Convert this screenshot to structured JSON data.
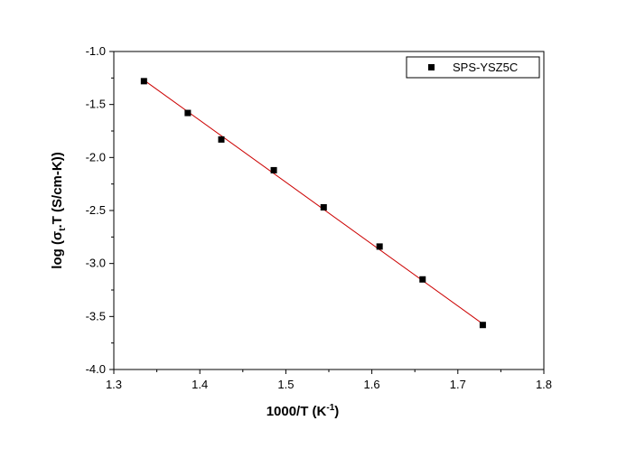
{
  "chart_data": {
    "type": "scatter",
    "xlabel": {
      "main": "1000/T (K",
      "sup": "-1",
      "tail": ")"
    },
    "ylabel": {
      "pre": "log (σ",
      "sub": "t",
      "post": ".T (S/cm-K))"
    },
    "xlim": [
      1.3,
      1.8
    ],
    "ylim": [
      -4.0,
      -1.0
    ],
    "xticks": [
      "1.3",
      "1.4",
      "1.5",
      "1.6",
      "1.7",
      "1.8"
    ],
    "yticks": [
      "-4.0",
      "-3.5",
      "-3.0",
      "-2.5",
      "-2.0",
      "-1.5",
      "-1.0"
    ],
    "legend_position": "top-right",
    "grid": false,
    "series": [
      {
        "name": "SPS-YSZ5C",
        "marker": "square",
        "color": "#000000",
        "x": [
          1.335,
          1.386,
          1.425,
          1.486,
          1.544,
          1.609,
          1.659,
          1.729
        ],
        "y": [
          -1.28,
          -1.58,
          -1.83,
          -2.12,
          -2.47,
          -2.84,
          -3.15,
          -3.58
        ]
      }
    ],
    "fit_line": {
      "color": "#cc0000",
      "x": [
        1.335,
        1.729
      ],
      "y": [
        -1.27,
        -3.57
      ]
    }
  }
}
